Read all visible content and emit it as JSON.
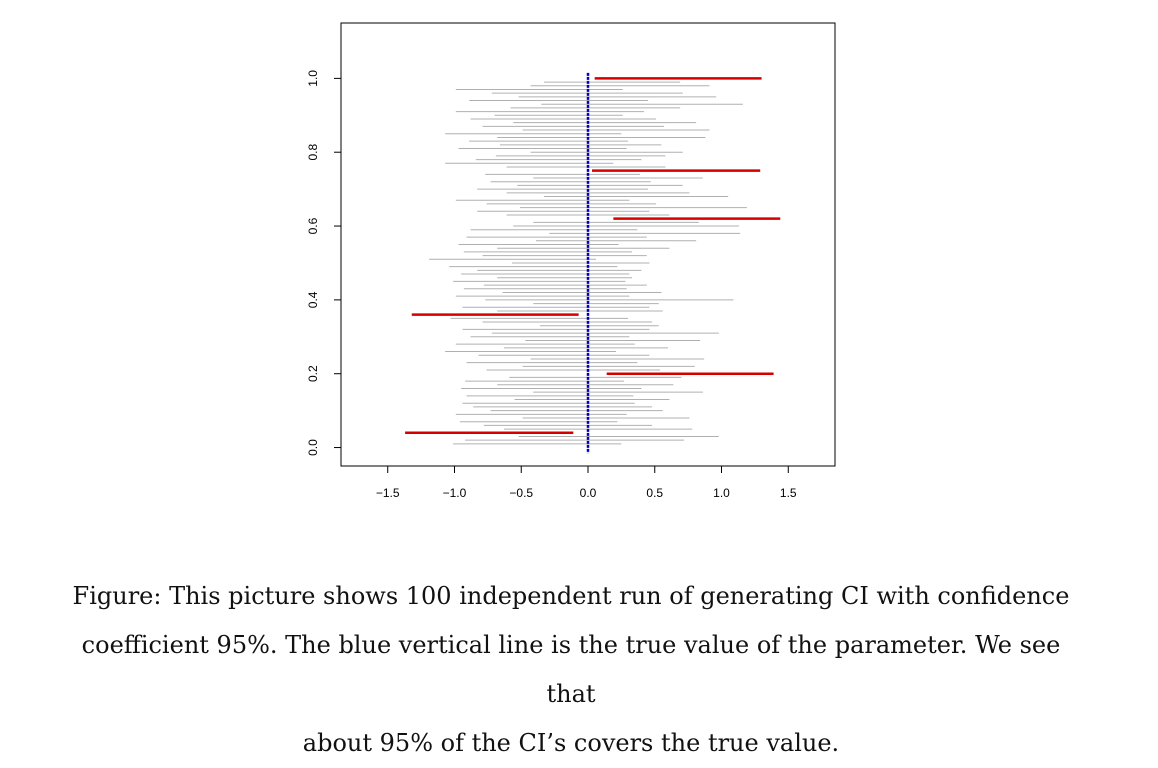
{
  "chart_data": {
    "type": "interval",
    "title": "",
    "xlabel": "",
    "ylabel": "",
    "xlim": [
      -1.85,
      1.85
    ],
    "ylim": [
      -0.05,
      1.15
    ],
    "xticks": [
      "−1.5",
      "−1.0",
      "−0.5",
      "0.0",
      "0.5",
      "1.0",
      "1.5"
    ],
    "xtick_values": [
      -1.5,
      -1.0,
      -0.5,
      0.0,
      0.5,
      1.0,
      1.5
    ],
    "yticks": [
      "0.0",
      "0.2",
      "0.4",
      "0.6",
      "0.8",
      "1.0"
    ],
    "ytick_values": [
      0.0,
      0.2,
      0.4,
      0.6,
      0.8,
      1.0
    ],
    "true_value": 0.0,
    "covering_color": "#b0b0b0",
    "missing_color": "#d40000",
    "true_line_color": "#0000c8",
    "grid": false,
    "n_intervals": 100,
    "intervals": [
      {
        "y": 0.01,
        "lo": -1.01,
        "hi": 0.25,
        "covers": true
      },
      {
        "y": 0.02,
        "lo": -0.92,
        "hi": 0.72,
        "covers": true
      },
      {
        "y": 0.03,
        "lo": -0.52,
        "hi": 0.98,
        "covers": true
      },
      {
        "y": 0.04,
        "lo": -1.37,
        "hi": -0.11,
        "covers": false
      },
      {
        "y": 0.05,
        "lo": -0.63,
        "hi": 0.78,
        "covers": true
      },
      {
        "y": 0.06,
        "lo": -0.78,
        "hi": 0.48,
        "covers": true
      },
      {
        "y": 0.07,
        "lo": -0.96,
        "hi": 0.22,
        "covers": true
      },
      {
        "y": 0.08,
        "lo": -0.49,
        "hi": 0.76,
        "covers": true
      },
      {
        "y": 0.09,
        "lo": -0.99,
        "hi": 0.29,
        "covers": true
      },
      {
        "y": 0.1,
        "lo": -0.73,
        "hi": 0.56,
        "covers": true
      },
      {
        "y": 0.11,
        "lo": -0.86,
        "hi": 0.48,
        "covers": true
      },
      {
        "y": 0.12,
        "lo": -0.94,
        "hi": 0.35,
        "covers": true
      },
      {
        "y": 0.13,
        "lo": -0.55,
        "hi": 0.61,
        "covers": true
      },
      {
        "y": 0.14,
        "lo": -0.91,
        "hi": 0.34,
        "covers": true
      },
      {
        "y": 0.15,
        "lo": -0.41,
        "hi": 0.86,
        "covers": true
      },
      {
        "y": 0.16,
        "lo": -0.95,
        "hi": 0.4,
        "covers": true
      },
      {
        "y": 0.17,
        "lo": -0.68,
        "hi": 0.64,
        "covers": true
      },
      {
        "y": 0.18,
        "lo": -0.92,
        "hi": 0.27,
        "covers": true
      },
      {
        "y": 0.19,
        "lo": -0.59,
        "hi": 0.7,
        "covers": true
      },
      {
        "y": 0.2,
        "lo": 0.14,
        "hi": 1.39,
        "covers": false
      },
      {
        "y": 0.21,
        "lo": -0.76,
        "hi": 0.54,
        "covers": true
      },
      {
        "y": 0.22,
        "lo": -0.49,
        "hi": 0.8,
        "covers": true
      },
      {
        "y": 0.23,
        "lo": -0.91,
        "hi": 0.37,
        "covers": true
      },
      {
        "y": 0.24,
        "lo": -0.43,
        "hi": 0.87,
        "covers": true
      },
      {
        "y": 0.25,
        "lo": -0.82,
        "hi": 0.46,
        "covers": true
      },
      {
        "y": 0.26,
        "lo": -1.07,
        "hi": 0.21,
        "covers": true
      },
      {
        "y": 0.27,
        "lo": -0.63,
        "hi": 0.6,
        "covers": true
      },
      {
        "y": 0.28,
        "lo": -0.99,
        "hi": 0.35,
        "covers": true
      },
      {
        "y": 0.29,
        "lo": -0.47,
        "hi": 0.84,
        "covers": true
      },
      {
        "y": 0.3,
        "lo": -0.88,
        "hi": 0.31,
        "covers": true
      },
      {
        "y": 0.31,
        "lo": -0.72,
        "hi": 0.98,
        "covers": true
      },
      {
        "y": 0.32,
        "lo": -0.94,
        "hi": 0.46,
        "covers": true
      },
      {
        "y": 0.33,
        "lo": -0.36,
        "hi": 0.53,
        "covers": true
      },
      {
        "y": 0.34,
        "lo": -0.79,
        "hi": 0.48,
        "covers": true
      },
      {
        "y": 0.35,
        "lo": -1.03,
        "hi": 0.3,
        "covers": true
      },
      {
        "y": 0.36,
        "lo": -1.32,
        "hi": -0.07,
        "covers": false
      },
      {
        "y": 0.37,
        "lo": -0.68,
        "hi": 0.56,
        "covers": true
      },
      {
        "y": 0.38,
        "lo": -0.94,
        "hi": 0.46,
        "covers": true
      },
      {
        "y": 0.39,
        "lo": -0.41,
        "hi": 0.53,
        "covers": true
      },
      {
        "y": 0.4,
        "lo": -0.77,
        "hi": 1.09,
        "covers": true
      },
      {
        "y": 0.41,
        "lo": -0.99,
        "hi": 0.31,
        "covers": true
      },
      {
        "y": 0.42,
        "lo": -0.64,
        "hi": 0.55,
        "covers": true
      },
      {
        "y": 0.43,
        "lo": -0.93,
        "hi": 0.29,
        "covers": true
      },
      {
        "y": 0.44,
        "lo": -0.78,
        "hi": 0.44,
        "covers": true
      },
      {
        "y": 0.45,
        "lo": -1.01,
        "hi": 0.28,
        "covers": true
      },
      {
        "y": 0.46,
        "lo": -0.68,
        "hi": 0.33,
        "covers": true
      },
      {
        "y": 0.47,
        "lo": -0.95,
        "hi": 0.31,
        "covers": true
      },
      {
        "y": 0.48,
        "lo": -0.83,
        "hi": 0.4,
        "covers": true
      },
      {
        "y": 0.49,
        "lo": -1.04,
        "hi": 0.22,
        "covers": true
      },
      {
        "y": 0.5,
        "lo": -0.57,
        "hi": 0.46,
        "covers": true
      },
      {
        "y": 0.51,
        "lo": -1.19,
        "hi": 0.06,
        "covers": true
      },
      {
        "y": 0.52,
        "lo": -0.79,
        "hi": 0.44,
        "covers": true
      },
      {
        "y": 0.53,
        "lo": -0.93,
        "hi": 0.33,
        "covers": true
      },
      {
        "y": 0.54,
        "lo": -0.68,
        "hi": 0.61,
        "covers": true
      },
      {
        "y": 0.55,
        "lo": -0.97,
        "hi": 0.23,
        "covers": true
      },
      {
        "y": 0.56,
        "lo": -0.39,
        "hi": 0.81,
        "covers": true
      },
      {
        "y": 0.57,
        "lo": -0.91,
        "hi": 0.44,
        "covers": true
      },
      {
        "y": 0.58,
        "lo": -0.29,
        "hi": 1.14,
        "covers": true
      },
      {
        "y": 0.59,
        "lo": -0.88,
        "hi": 0.37,
        "covers": true
      },
      {
        "y": 0.6,
        "lo": -0.56,
        "hi": 1.13,
        "covers": true
      },
      {
        "y": 0.61,
        "lo": -0.41,
        "hi": 0.83,
        "covers": true
      },
      {
        "y": 0.62,
        "lo": 0.19,
        "hi": 1.44,
        "covers": false
      },
      {
        "y": 0.63,
        "lo": -0.61,
        "hi": 0.61,
        "covers": true
      },
      {
        "y": 0.64,
        "lo": -0.83,
        "hi": 0.46,
        "covers": true
      },
      {
        "y": 0.65,
        "lo": -0.51,
        "hi": 1.19,
        "covers": true
      },
      {
        "y": 0.66,
        "lo": -0.76,
        "hi": 0.51,
        "covers": true
      },
      {
        "y": 0.67,
        "lo": -0.99,
        "hi": 0.31,
        "covers": true
      },
      {
        "y": 0.68,
        "lo": -0.33,
        "hi": 1.05,
        "covers": true
      },
      {
        "y": 0.69,
        "lo": -0.61,
        "hi": 0.76,
        "covers": true
      },
      {
        "y": 0.7,
        "lo": -0.83,
        "hi": 0.45,
        "covers": true
      },
      {
        "y": 0.71,
        "lo": -0.53,
        "hi": 0.71,
        "covers": true
      },
      {
        "y": 0.72,
        "lo": -0.73,
        "hi": 0.47,
        "covers": true
      },
      {
        "y": 0.73,
        "lo": -0.41,
        "hi": 0.86,
        "covers": true
      },
      {
        "y": 0.74,
        "lo": -0.77,
        "hi": 0.39,
        "covers": true
      },
      {
        "y": 0.75,
        "lo": 0.03,
        "hi": 1.29,
        "covers": false
      },
      {
        "y": 0.76,
        "lo": -0.61,
        "hi": 0.58,
        "covers": true
      },
      {
        "y": 0.77,
        "lo": -1.07,
        "hi": 0.19,
        "covers": true
      },
      {
        "y": 0.78,
        "lo": -0.84,
        "hi": 0.4,
        "covers": true
      },
      {
        "y": 0.79,
        "lo": -0.69,
        "hi": 0.58,
        "covers": true
      },
      {
        "y": 0.8,
        "lo": -0.43,
        "hi": 0.71,
        "covers": true
      },
      {
        "y": 0.81,
        "lo": -0.97,
        "hi": 0.29,
        "covers": true
      },
      {
        "y": 0.82,
        "lo": -0.66,
        "hi": 0.55,
        "covers": true
      },
      {
        "y": 0.83,
        "lo": -0.89,
        "hi": 0.3,
        "covers": true
      },
      {
        "y": 0.84,
        "lo": -0.68,
        "hi": 0.88,
        "covers": true
      },
      {
        "y": 0.85,
        "lo": -1.07,
        "hi": 0.25,
        "covers": true
      },
      {
        "y": 0.86,
        "lo": -0.49,
        "hi": 0.91,
        "covers": true
      },
      {
        "y": 0.87,
        "lo": -0.79,
        "hi": 0.57,
        "covers": true
      },
      {
        "y": 0.88,
        "lo": -0.56,
        "hi": 0.81,
        "covers": true
      },
      {
        "y": 0.89,
        "lo": -0.88,
        "hi": 0.51,
        "covers": true
      },
      {
        "y": 0.9,
        "lo": -0.7,
        "hi": 0.26,
        "covers": true
      },
      {
        "y": 0.91,
        "lo": -0.99,
        "hi": 0.42,
        "covers": true
      },
      {
        "y": 0.92,
        "lo": -0.58,
        "hi": 0.69,
        "covers": true
      },
      {
        "y": 0.93,
        "lo": -0.35,
        "hi": 1.16,
        "covers": true
      },
      {
        "y": 0.94,
        "lo": -0.89,
        "hi": 0.45,
        "covers": true
      },
      {
        "y": 0.95,
        "lo": -0.52,
        "hi": 0.96,
        "covers": true
      },
      {
        "y": 0.96,
        "lo": -0.72,
        "hi": 0.71,
        "covers": true
      },
      {
        "y": 0.97,
        "lo": -0.99,
        "hi": 0.26,
        "covers": true
      },
      {
        "y": 0.98,
        "lo": -0.43,
        "hi": 0.91,
        "covers": true
      },
      {
        "y": 0.99,
        "lo": -0.33,
        "hi": 0.69,
        "covers": true
      },
      {
        "y": 1.0,
        "lo": 0.05,
        "hi": 1.3,
        "covers": false
      }
    ]
  },
  "caption": {
    "line1": "Figure: This picture shows 100 independent run of generating CI with confidence",
    "line2": "coefficient 95%. The blue vertical line is the true value of the parameter. We see that",
    "line3": "about 95% of the CI’s covers the true value."
  }
}
